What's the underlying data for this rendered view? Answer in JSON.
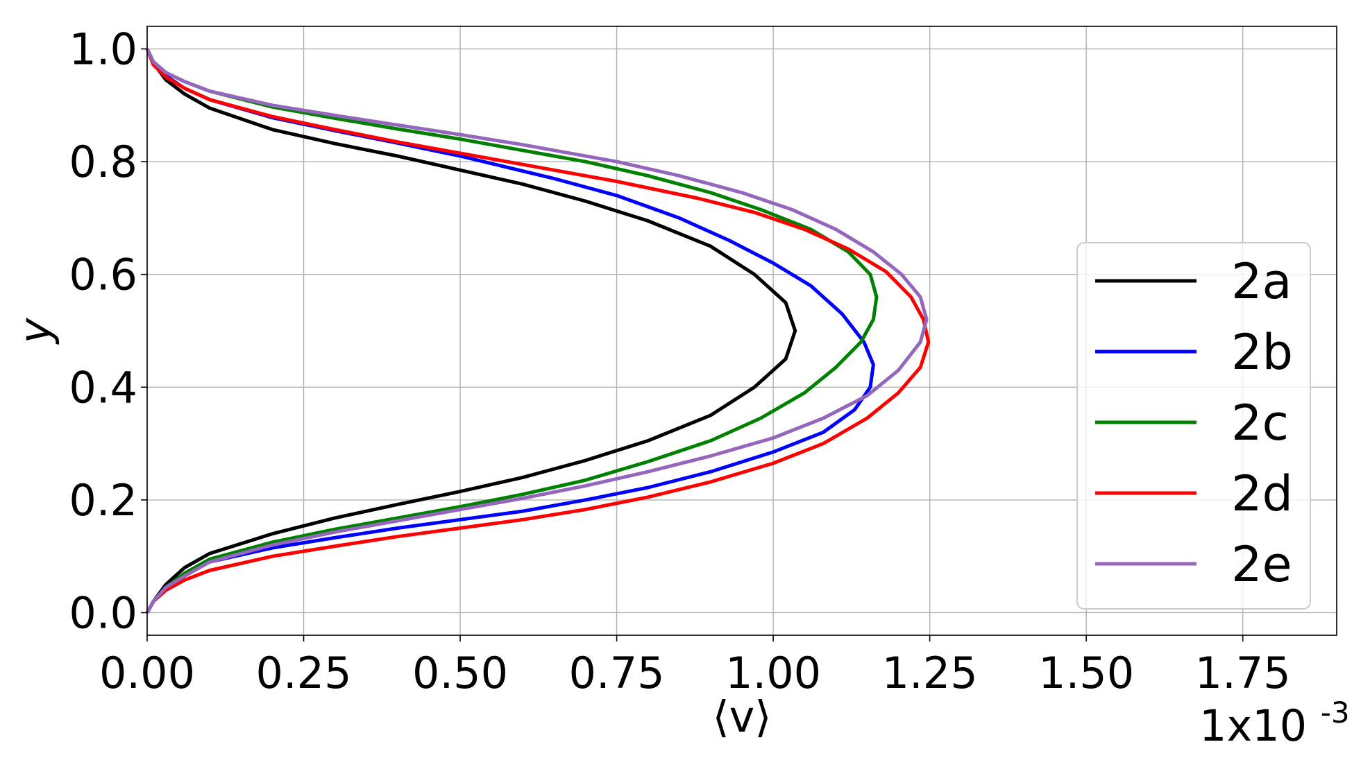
{
  "chart_data": {
    "type": "line",
    "xlabel": "⟨v⟩",
    "ylabel": "y",
    "x_multiplier": {
      "base": "1x10",
      "exp": "-3"
    },
    "xlim": [
      0,
      1.9
    ],
    "ylim": [
      -0.04,
      1.04
    ],
    "xticks": [
      0.0,
      0.25,
      0.5,
      0.75,
      1.0,
      1.25,
      1.5,
      1.75
    ],
    "xtick_labels": [
      "0.00",
      "0.25",
      "0.50",
      "0.75",
      "1.00",
      "1.25",
      "1.50",
      "1.75"
    ],
    "yticks": [
      0.0,
      0.2,
      0.4,
      0.6,
      0.8,
      1.0
    ],
    "ytick_labels": [
      "0.0",
      "0.2",
      "0.4",
      "0.6",
      "0.8",
      "1.0"
    ],
    "grid": true,
    "legend_position": "center-right",
    "series": [
      {
        "name": "2a",
        "color": "#000000",
        "points": [
          [
            0,
            0
          ],
          [
            0.01,
            0.02
          ],
          [
            0.03,
            0.05
          ],
          [
            0.06,
            0.08
          ],
          [
            0.1,
            0.105
          ],
          [
            0.2,
            0.14
          ],
          [
            0.3,
            0.168
          ],
          [
            0.4,
            0.192
          ],
          [
            0.5,
            0.215
          ],
          [
            0.6,
            0.24
          ],
          [
            0.7,
            0.27
          ],
          [
            0.8,
            0.305
          ],
          [
            0.9,
            0.35
          ],
          [
            0.97,
            0.4
          ],
          [
            1.02,
            0.45
          ],
          [
            1.035,
            0.5
          ],
          [
            1.02,
            0.55
          ],
          [
            0.97,
            0.6
          ],
          [
            0.9,
            0.65
          ],
          [
            0.8,
            0.695
          ],
          [
            0.7,
            0.73
          ],
          [
            0.6,
            0.76
          ],
          [
            0.5,
            0.785
          ],
          [
            0.4,
            0.81
          ],
          [
            0.3,
            0.832
          ],
          [
            0.2,
            0.857
          ],
          [
            0.1,
            0.895
          ],
          [
            0.06,
            0.92
          ],
          [
            0.03,
            0.945
          ],
          [
            0.01,
            0.975
          ],
          [
            0,
            1.0
          ]
        ]
      },
      {
        "name": "2b",
        "color": "#0000ff",
        "points": [
          [
            0,
            0
          ],
          [
            0.01,
            0.02
          ],
          [
            0.03,
            0.045
          ],
          [
            0.06,
            0.07
          ],
          [
            0.1,
            0.09
          ],
          [
            0.2,
            0.115
          ],
          [
            0.3,
            0.133
          ],
          [
            0.4,
            0.15
          ],
          [
            0.5,
            0.165
          ],
          [
            0.6,
            0.18
          ],
          [
            0.7,
            0.2
          ],
          [
            0.8,
            0.222
          ],
          [
            0.9,
            0.25
          ],
          [
            1.0,
            0.285
          ],
          [
            1.08,
            0.32
          ],
          [
            1.13,
            0.36
          ],
          [
            1.155,
            0.4
          ],
          [
            1.16,
            0.44
          ],
          [
            1.145,
            0.48
          ],
          [
            1.11,
            0.53
          ],
          [
            1.06,
            0.58
          ],
          [
            1.0,
            0.62
          ],
          [
            0.93,
            0.66
          ],
          [
            0.85,
            0.7
          ],
          [
            0.75,
            0.74
          ],
          [
            0.65,
            0.77
          ],
          [
            0.5,
            0.81
          ],
          [
            0.4,
            0.833
          ],
          [
            0.3,
            0.855
          ],
          [
            0.2,
            0.878
          ],
          [
            0.1,
            0.91
          ],
          [
            0.06,
            0.93
          ],
          [
            0.03,
            0.952
          ],
          [
            0.01,
            0.975
          ],
          [
            0,
            1.0
          ]
        ]
      },
      {
        "name": "2c",
        "color": "#008000",
        "points": [
          [
            0,
            0
          ],
          [
            0.01,
            0.02
          ],
          [
            0.03,
            0.045
          ],
          [
            0.06,
            0.07
          ],
          [
            0.1,
            0.095
          ],
          [
            0.2,
            0.125
          ],
          [
            0.3,
            0.148
          ],
          [
            0.4,
            0.168
          ],
          [
            0.5,
            0.188
          ],
          [
            0.6,
            0.21
          ],
          [
            0.7,
            0.235
          ],
          [
            0.8,
            0.268
          ],
          [
            0.9,
            0.305
          ],
          [
            0.98,
            0.345
          ],
          [
            1.05,
            0.39
          ],
          [
            1.1,
            0.435
          ],
          [
            1.14,
            0.48
          ],
          [
            1.16,
            0.52
          ],
          [
            1.165,
            0.56
          ],
          [
            1.155,
            0.6
          ],
          [
            1.12,
            0.64
          ],
          [
            1.06,
            0.68
          ],
          [
            0.98,
            0.715
          ],
          [
            0.9,
            0.745
          ],
          [
            0.8,
            0.775
          ],
          [
            0.7,
            0.8
          ],
          [
            0.6,
            0.82
          ],
          [
            0.5,
            0.84
          ],
          [
            0.4,
            0.858
          ],
          [
            0.3,
            0.877
          ],
          [
            0.2,
            0.897
          ],
          [
            0.1,
            0.925
          ],
          [
            0.06,
            0.942
          ],
          [
            0.03,
            0.958
          ],
          [
            0.01,
            0.977
          ],
          [
            0,
            1.0
          ]
        ]
      },
      {
        "name": "2d",
        "color": "#ff0000",
        "points": [
          [
            0,
            0
          ],
          [
            0.01,
            0.02
          ],
          [
            0.03,
            0.04
          ],
          [
            0.06,
            0.058
          ],
          [
            0.1,
            0.075
          ],
          [
            0.2,
            0.1
          ],
          [
            0.3,
            0.118
          ],
          [
            0.4,
            0.135
          ],
          [
            0.5,
            0.15
          ],
          [
            0.6,
            0.165
          ],
          [
            0.7,
            0.183
          ],
          [
            0.8,
            0.205
          ],
          [
            0.9,
            0.232
          ],
          [
            1.0,
            0.265
          ],
          [
            1.08,
            0.3
          ],
          [
            1.15,
            0.345
          ],
          [
            1.2,
            0.39
          ],
          [
            1.235,
            0.435
          ],
          [
            1.248,
            0.48
          ],
          [
            1.24,
            0.52
          ],
          [
            1.22,
            0.56
          ],
          [
            1.18,
            0.605
          ],
          [
            1.12,
            0.645
          ],
          [
            1.05,
            0.68
          ],
          [
            0.97,
            0.71
          ],
          [
            0.88,
            0.735
          ],
          [
            0.75,
            0.765
          ],
          [
            0.6,
            0.795
          ],
          [
            0.5,
            0.815
          ],
          [
            0.4,
            0.835
          ],
          [
            0.3,
            0.857
          ],
          [
            0.2,
            0.88
          ],
          [
            0.1,
            0.91
          ],
          [
            0.06,
            0.93
          ],
          [
            0.03,
            0.95
          ],
          [
            0.01,
            0.972
          ],
          [
            0,
            1.0
          ]
        ]
      },
      {
        "name": "2e",
        "color": "#9467bd",
        "points": [
          [
            0,
            0
          ],
          [
            0.01,
            0.02
          ],
          [
            0.03,
            0.045
          ],
          [
            0.06,
            0.065
          ],
          [
            0.1,
            0.09
          ],
          [
            0.2,
            0.12
          ],
          [
            0.3,
            0.143
          ],
          [
            0.4,
            0.163
          ],
          [
            0.5,
            0.183
          ],
          [
            0.6,
            0.203
          ],
          [
            0.7,
            0.225
          ],
          [
            0.8,
            0.25
          ],
          [
            0.9,
            0.278
          ],
          [
            1.0,
            0.31
          ],
          [
            1.08,
            0.345
          ],
          [
            1.15,
            0.385
          ],
          [
            1.2,
            0.43
          ],
          [
            1.235,
            0.48
          ],
          [
            1.245,
            0.52
          ],
          [
            1.235,
            0.56
          ],
          [
            1.205,
            0.6
          ],
          [
            1.16,
            0.64
          ],
          [
            1.1,
            0.68
          ],
          [
            1.03,
            0.715
          ],
          [
            0.95,
            0.745
          ],
          [
            0.85,
            0.775
          ],
          [
            0.75,
            0.8
          ],
          [
            0.6,
            0.83
          ],
          [
            0.5,
            0.848
          ],
          [
            0.4,
            0.865
          ],
          [
            0.3,
            0.882
          ],
          [
            0.2,
            0.9
          ],
          [
            0.1,
            0.925
          ],
          [
            0.06,
            0.942
          ],
          [
            0.03,
            0.958
          ],
          [
            0.01,
            0.977
          ],
          [
            0,
            1.0
          ]
        ]
      }
    ]
  }
}
